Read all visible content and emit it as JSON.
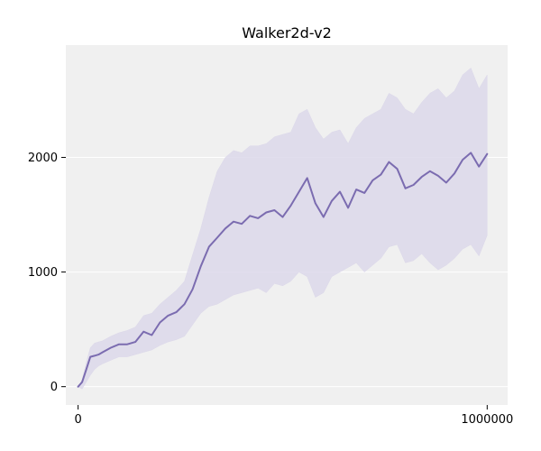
{
  "chart_data": {
    "type": "line",
    "title": "Walker2d-v2",
    "xlabel": "",
    "ylabel": "",
    "xlim": [
      -30000,
      1050000
    ],
    "ylim": [
      -160,
      2980
    ],
    "x_ticks": [
      0,
      1000000
    ],
    "x_tick_labels": [
      "0",
      "1000000"
    ],
    "y_ticks": [
      0,
      1000,
      2000
    ],
    "y_tick_labels": [
      "0",
      "1000",
      "2000"
    ],
    "grid": "horizontal",
    "legend": "none",
    "colors": {
      "background": "#f0f0f0",
      "line": "#7b6cb0",
      "band": "#dcd8ea",
      "grid": "#ffffff"
    },
    "series": [
      {
        "x": [
          0,
          10000,
          20000,
          30000,
          40000,
          50000,
          60000,
          80000,
          100000,
          120000,
          140000,
          160000,
          180000,
          200000,
          220000,
          240000,
          260000,
          280000,
          300000,
          320000,
          340000,
          360000,
          380000,
          400000,
          420000,
          440000,
          460000,
          480000,
          500000,
          520000,
          540000,
          560000,
          580000,
          600000,
          620000,
          640000,
          660000,
          680000,
          700000,
          720000,
          740000,
          760000,
          780000,
          800000,
          820000,
          840000,
          860000,
          880000,
          900000,
          920000,
          940000,
          960000,
          980000,
          1000000
        ],
        "mean": [
          0,
          40,
          150,
          260,
          270,
          280,
          300,
          340,
          370,
          370,
          390,
          480,
          450,
          560,
          620,
          650,
          720,
          850,
          1050,
          1220,
          1300,
          1380,
          1440,
          1420,
          1490,
          1470,
          1520,
          1540,
          1480,
          1580,
          1700,
          1820,
          1600,
          1480,
          1620,
          1700,
          1560,
          1720,
          1690,
          1800,
          1850,
          1960,
          1900,
          1730,
          1760,
          1830,
          1880,
          1840,
          1780,
          1860,
          1980,
          2040,
          1920,
          2030
        ],
        "lower": [
          0,
          -20,
          40,
          100,
          150,
          180,
          200,
          230,
          260,
          260,
          280,
          300,
          320,
          360,
          390,
          410,
          440,
          540,
          640,
          700,
          720,
          760,
          800,
          820,
          840,
          860,
          820,
          900,
          880,
          920,
          1000,
          960,
          780,
          820,
          960,
          1000,
          1040,
          1080,
          1000,
          1060,
          1120,
          1220,
          1240,
          1080,
          1100,
          1160,
          1080,
          1020,
          1060,
          1120,
          1200,
          1240,
          1140,
          1320
        ],
        "upper": [
          0,
          60,
          210,
          340,
          380,
          390,
          400,
          440,
          470,
          490,
          520,
          620,
          640,
          720,
          780,
          840,
          920,
          1150,
          1380,
          1650,
          1880,
          2000,
          2060,
          2040,
          2100,
          2100,
          2120,
          2180,
          2200,
          2220,
          2380,
          2420,
          2260,
          2160,
          2220,
          2240,
          2120,
          2260,
          2340,
          2380,
          2420,
          2560,
          2520,
          2420,
          2380,
          2480,
          2560,
          2600,
          2520,
          2580,
          2720,
          2780,
          2600,
          2720
        ]
      }
    ]
  }
}
